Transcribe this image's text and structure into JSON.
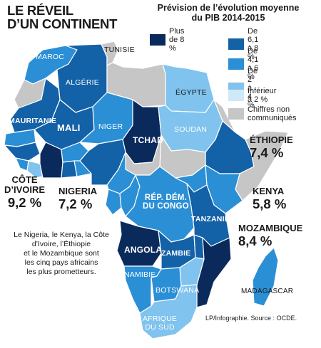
{
  "title": "LE RÉVEIL\nD’UN CONTINENT",
  "legend": {
    "title": "Prévision de l’évolution moyenne\ndu PIB 2014-2015",
    "items": [
      {
        "label": "Plus de 8 %",
        "color": "#0a2a5c"
      },
      {
        "label": "De 6,1 à 8 %",
        "color": "#1361a7"
      },
      {
        "label": "De 4,1 à 6 %",
        "color": "#2b8fd6"
      },
      {
        "label": "De 2 à 4 %",
        "color": "#7fc3ee"
      },
      {
        "label": "Inférieur à 2 %",
        "color": "#cfe9f8"
      },
      {
        "label": "Chiffres non\ncommuniqués",
        "color": "#c6c6c6"
      }
    ]
  },
  "countries": {
    "maroc": "MAROC",
    "algerie": "ALGÉRIE",
    "tunisie": "TUNISIE",
    "egypte": "ÉGYPTE",
    "mauritanie": "MAURITANIE",
    "mali": "MALI",
    "niger": "NIGER",
    "tchad": "TCHAD",
    "soudan": "SOUDAN",
    "rdc": "RÉP. DÉM.\nDU CONGO",
    "tanzanie": "TANZANIE",
    "angola": "ANGOLA",
    "zambie": "ZAMBIE",
    "namibie": "NAMIBIE",
    "botswana": "BOTSWANA",
    "afrique_sud": "AFRIQUE\nDU SUD",
    "madagascar": "MADAGASCAR"
  },
  "callouts": {
    "ethiopie": {
      "name": "ÉTHIOPIE",
      "value": "7,4 %"
    },
    "cote_ivoire": {
      "name": "CÔTE\nD’IVOIRE",
      "value": "9,2 %"
    },
    "nigeria": {
      "name": "NIGERIA",
      "value": "7,2 %"
    },
    "kenya": {
      "name": "KENYA",
      "value": "5,8 %"
    },
    "mozambique": {
      "name": "MOZAMBIQUE",
      "value": "8,4 %"
    }
  },
  "caption": "Le Nigeria, le Kenya, la Côte\nd’Ivoire, l’Éthiopie\net le Mozambique sont\nles cinq pays africains\nles plus prometteurs.",
  "credit": "LP/Infographie.     Source : OCDE."
}
